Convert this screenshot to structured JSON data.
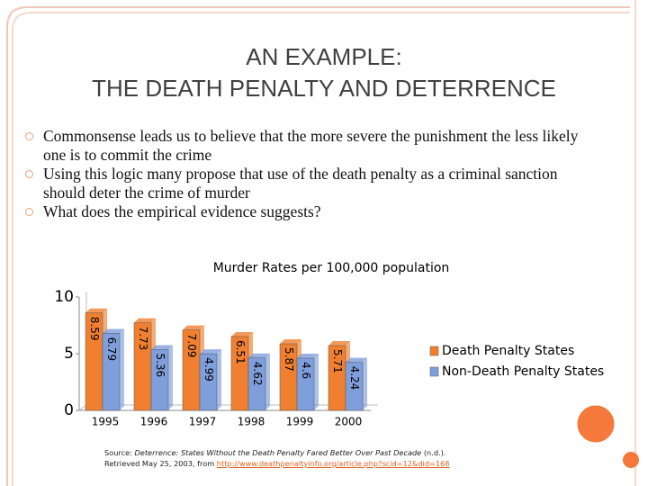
{
  "slide": {
    "title_line1": "AN EXAMPLE:",
    "title_line2": "THE DEATH PENALTY AND DETERRENCE",
    "bullets": [
      "Commonsense leads us to believe that the more severe the punishment the less likely one is to commit the crime",
      "Using this logic many propose that use of the death penalty as a criminal sanction should deter the crime of murder",
      "What does the empirical evidence suggests?"
    ],
    "source": {
      "label": "Source:",
      "work": "Deterrence: States Without the Death Penalty Fared Better Over Past Decade",
      "date": "(n.d.).",
      "retrieved": "Retrieved May 25, 2003, from",
      "url": "http://www.deathpenaltyinfo.org/article.php?scid=12&did=168"
    }
  },
  "chart_data": {
    "type": "bar",
    "title": "Murder Rates per 100,000 population",
    "categories": [
      "1995",
      "1996",
      "1997",
      "1998",
      "1999",
      "2000"
    ],
    "series": [
      {
        "name": "Death Penalty States",
        "color": "#f08030",
        "values": [
          8.59,
          7.73,
          7.09,
          6.51,
          5.87,
          5.71
        ]
      },
      {
        "name": "Non-Death Penalty States",
        "color": "#7f9fdc",
        "values": [
          6.79,
          5.36,
          4.99,
          4.62,
          4.6,
          4.24
        ]
      }
    ],
    "ylim": [
      0,
      10
    ],
    "yticks": [
      0,
      5,
      10
    ]
  }
}
